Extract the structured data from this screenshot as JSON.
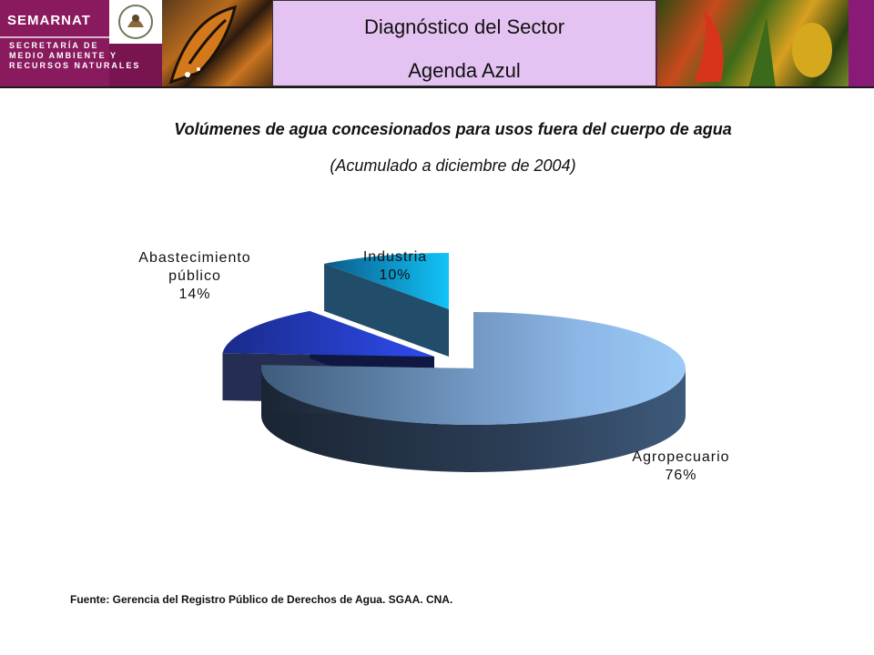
{
  "header": {
    "brand": "SEMARNAT",
    "subtitle_lines": [
      "SECRETARÍA DE",
      "MEDIO AMBIENTE Y",
      "RECURSOS NATURALES"
    ],
    "title_line1": "Diagnóstico del Sector",
    "title_line2": "Agenda Azul"
  },
  "chart_data": {
    "type": "pie",
    "style": "3d-exploded",
    "title": "Volúmenes de agua concesionados para usos fuera del cuerpo de agua",
    "subtitle": "(Acumulado a diciembre de 2004)",
    "slices": [
      {
        "label": "Agropecuario",
        "value": 76,
        "display": "76%",
        "color": "#7fa7d6"
      },
      {
        "label": "Abastecimiento público",
        "label_lines": [
          "Abastecimiento",
          "público"
        ],
        "value": 14,
        "display": "14%",
        "color": "#2a3fc8"
      },
      {
        "label": "Industria",
        "value": 10,
        "display": "10%",
        "color": "#12b4e8"
      }
    ]
  },
  "footer": {
    "source": "Fuente: Gerencia del Registro Público de Derechos  de Agua. SGAA. CNA."
  }
}
